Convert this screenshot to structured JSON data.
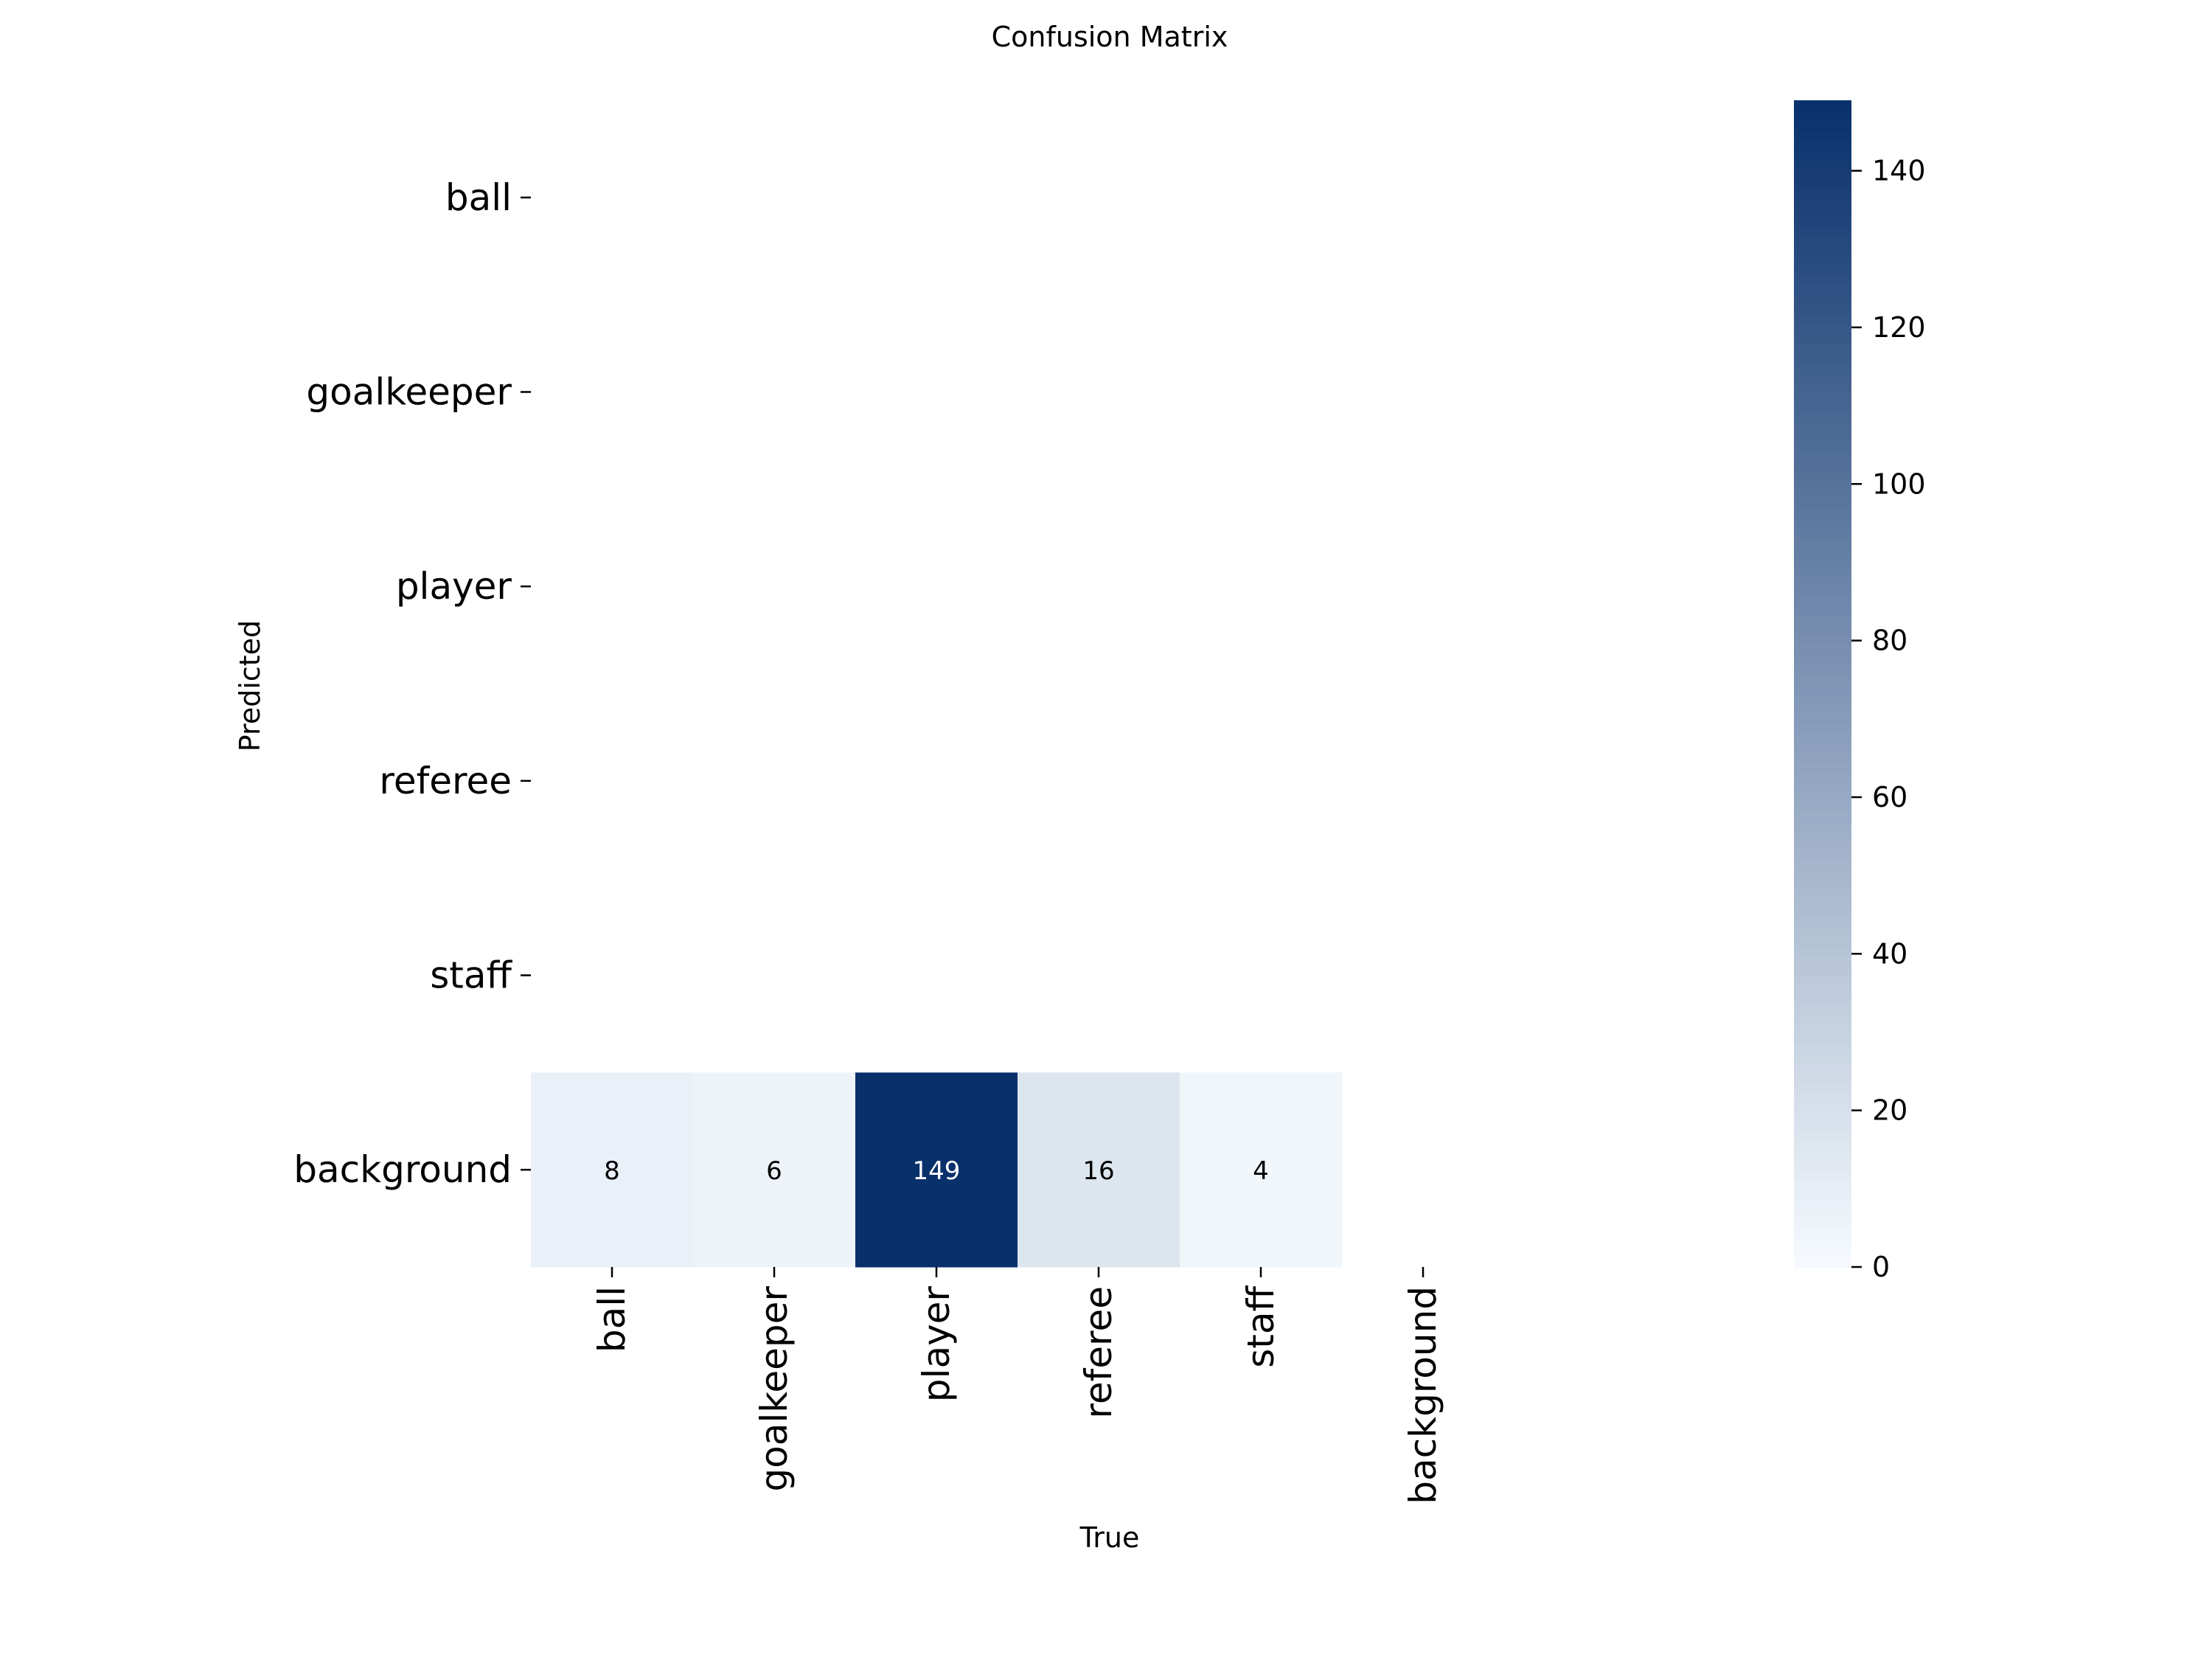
{
  "chart_data": {
    "type": "heatmap",
    "title": "Confusion Matrix",
    "xlabel": "True",
    "ylabel": "Predicted",
    "x_categories": [
      "ball",
      "goalkeeper",
      "player",
      "referee",
      "staff",
      "background"
    ],
    "y_categories": [
      "ball",
      "goalkeeper",
      "player",
      "referee",
      "staff",
      "background"
    ],
    "matrix": [
      [
        null,
        null,
        null,
        null,
        null,
        null
      ],
      [
        null,
        null,
        null,
        null,
        null,
        null
      ],
      [
        null,
        null,
        null,
        null,
        null,
        null
      ],
      [
        null,
        null,
        null,
        null,
        null,
        null
      ],
      [
        null,
        null,
        null,
        null,
        null,
        null
      ],
      [
        8,
        6,
        149,
        16,
        4,
        null
      ]
    ],
    "colorbar": {
      "min": 0,
      "max": 149,
      "ticks": [
        0,
        20,
        40,
        60,
        80,
        100,
        120,
        140
      ],
      "colormap": "Blues"
    },
    "colors": {
      "low": "#f7fbff",
      "high": "#08306b"
    },
    "grid": false,
    "legend": "colorbar-right"
  }
}
